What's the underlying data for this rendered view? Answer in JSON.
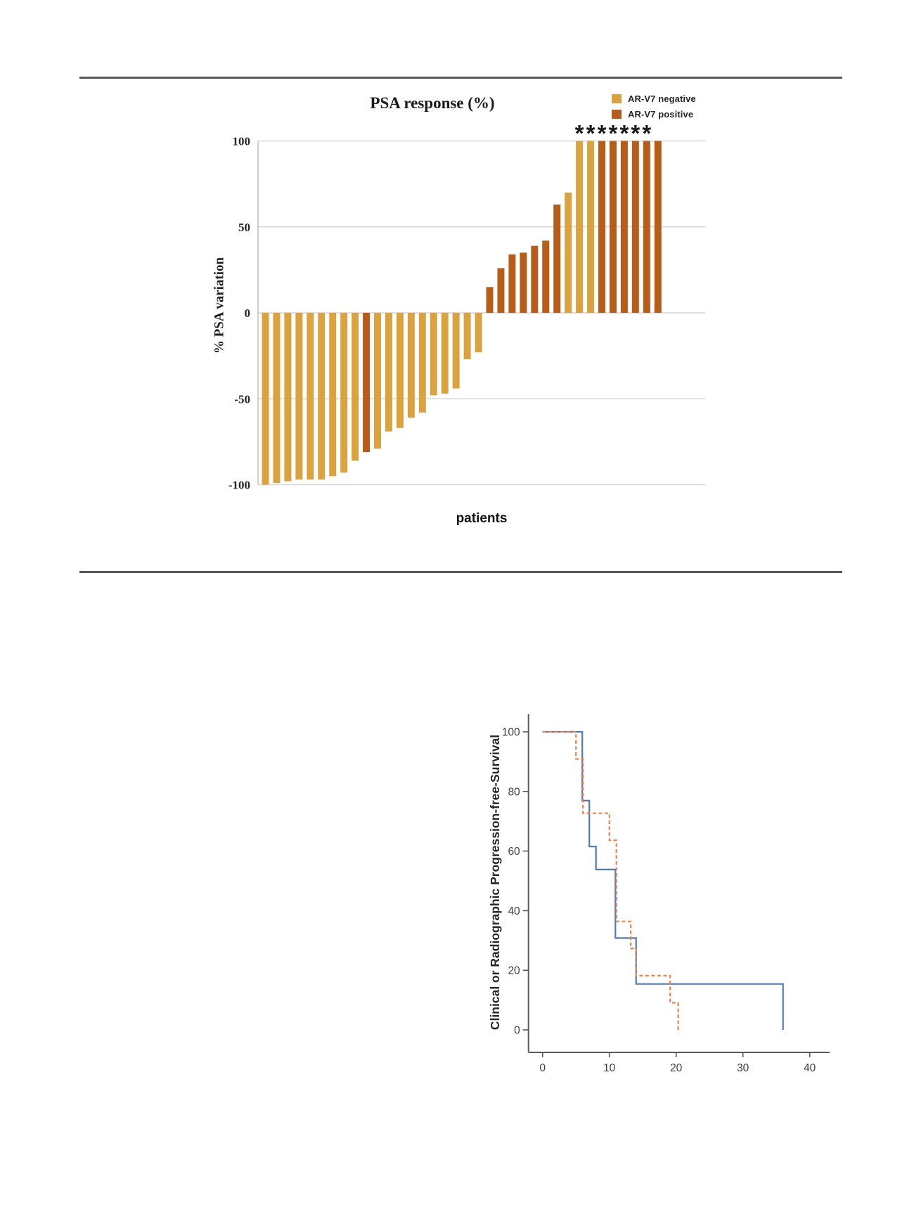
{
  "chart_data": [
    {
      "type": "bar",
      "name": "psa-waterfall",
      "title": "PSA response (%)",
      "ylabel": "% PSA variation",
      "xlabel": "patients",
      "ylim": [
        -100,
        100
      ],
      "yticks": [
        100,
        50,
        0,
        -50,
        -100
      ],
      "grid": "horizontal",
      "legend_position": "top-right",
      "legend": [
        {
          "label": "AR-V7 negative",
          "color": "#DBA340"
        },
        {
          "label": "AR-V7 positive",
          "color": "#B85C1A"
        }
      ],
      "values": [
        -100,
        -99,
        -98,
        -97,
        -97,
        -97,
        -95,
        -93,
        -86,
        -81,
        -79,
        -69,
        -67,
        -61,
        -58,
        -48,
        -47,
        -44,
        -27,
        -23,
        15,
        26,
        34,
        35,
        39,
        42,
        63,
        70,
        100,
        100,
        100,
        100,
        100,
        100,
        100,
        100
      ],
      "groups": [
        "negative",
        "negative",
        "negative",
        "negative",
        "negative",
        "negative",
        "negative",
        "negative",
        "negative",
        "positive",
        "negative",
        "negative",
        "negative",
        "negative",
        "negative",
        "negative",
        "negative",
        "negative",
        "negative",
        "negative",
        "positive",
        "positive",
        "positive",
        "positive",
        "positive",
        "positive",
        "positive",
        "negative",
        "negative",
        "negative",
        "positive",
        "positive",
        "positive",
        "positive",
        "positive",
        "positive"
      ],
      "asterisk_symbol": "*",
      "asterisk_bar_indices": [
        28,
        29,
        30,
        31,
        32,
        33,
        34
      ],
      "colors": {
        "grid": "#D4D4D4",
        "axis": "#BDBDBD",
        "tick_text": "#262626",
        "asterisk": "#1a1a1a"
      }
    },
    {
      "type": "line",
      "name": "progression-free-survival",
      "ylabel": "Clinical or Radiographic Progression-free-Survival",
      "xlabel": "",
      "xlim": [
        0,
        43
      ],
      "ylim": [
        0,
        100
      ],
      "xticks": [
        0,
        10,
        20,
        30,
        40
      ],
      "yticks": [
        100,
        80,
        60,
        40,
        20,
        0
      ],
      "grid": "off",
      "series": [
        {
          "name": "blue-solid",
          "style": "solid",
          "color": "#4E79BC",
          "points": [
            [
              0,
              100
            ],
            [
              5.95,
              100
            ],
            [
              5.95,
              76.9
            ],
            [
              7,
              76.9
            ],
            [
              7,
              61.5
            ],
            [
              8,
              61.5
            ],
            [
              8,
              53.8
            ],
            [
              10.9,
              53.8
            ],
            [
              10.9,
              30.8
            ],
            [
              14,
              30.8
            ],
            [
              14,
              15.4
            ],
            [
              36,
              15.4
            ],
            [
              36,
              0
            ]
          ]
        },
        {
          "name": "orange-dashed",
          "style": "dashed",
          "color": "#F08143",
          "points": [
            [
              0,
              100
            ],
            [
              5,
              100
            ],
            [
              5,
              90.9
            ],
            [
              6.05,
              90.9
            ],
            [
              6.05,
              72.7
            ],
            [
              10,
              72.7
            ],
            [
              10,
              63.6
            ],
            [
              11.05,
              63.6
            ],
            [
              11.05,
              36.4
            ],
            [
              13.2,
              36.4
            ],
            [
              13.2,
              27.3
            ],
            [
              14,
              27.3
            ],
            [
              14,
              18.2
            ],
            [
              19.1,
              18.2
            ],
            [
              19.1,
              9.1
            ],
            [
              20.3,
              9.1
            ],
            [
              20.3,
              0
            ]
          ]
        }
      ],
      "colors": {
        "axis": "#58585A",
        "tick_text": "#3F3F3F"
      }
    }
  ],
  "waterfall": {
    "title": "PSA response (%)",
    "ylabel": "% PSA variation",
    "xlabel": "patients",
    "legend": [
      {
        "label": "AR-V7 negative"
      },
      {
        "label": "AR-V7 positive"
      }
    ]
  },
  "km": {
    "ylabel": "Clinical or Radiographic Progression-free-Survival"
  },
  "dividers": {
    "color": "#58585a"
  }
}
